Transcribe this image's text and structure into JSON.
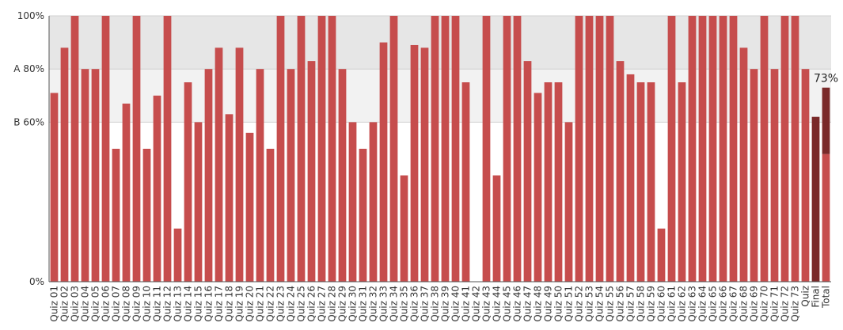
{
  "chart_data": {
    "type": "bar",
    "ylim": [
      0,
      100
    ],
    "yticks": [
      {
        "value": 0,
        "label": "0%"
      },
      {
        "value": 60,
        "label": "B 60%"
      },
      {
        "value": 80,
        "label": "A 80%"
      },
      {
        "value": 100,
        "label": "100%"
      }
    ],
    "bands": [
      {
        "from": 80,
        "to": 100,
        "color": "#e6e6e6"
      },
      {
        "from": 60,
        "to": 80,
        "color": "#f2f2f2"
      }
    ],
    "colors": {
      "bar": "#c64d4d",
      "dark": "#7a2a2a"
    },
    "categories": [
      "Quiz 01",
      "Quiz 02",
      "Quiz 03",
      "Quiz 04",
      "Quiz 05",
      "Quiz 06",
      "Quiz 07",
      "Quiz 08",
      "Quiz 09",
      "Quiz 10",
      "Quiz 11",
      "Quiz 12",
      "Quiz 13",
      "Quiz 14",
      "Quiz 15",
      "Quiz 16",
      "Quiz 17",
      "Quiz 18",
      "Quiz 19",
      "Quiz 20",
      "Quiz 21",
      "Quiz 22",
      "Quiz 23",
      "Quiz 24",
      "Quiz 25",
      "Quiz 26",
      "Quiz 27",
      "Quiz 28",
      "Quiz 29",
      "Quiz 30",
      "Quiz 31",
      "Quiz 32",
      "Quiz 33",
      "Quiz 34",
      "Quiz 35",
      "Quiz 36",
      "Quiz 37",
      "Quiz 38",
      "Quiz 39",
      "Quiz 40",
      "Quiz 41",
      "Quiz 42",
      "Quiz 43",
      "Quiz 44",
      "Quiz 45",
      "Quiz 46",
      "Quiz 47",
      "Quiz 48",
      "Quiz 49",
      "Quiz 50",
      "Quiz 51",
      "Quiz 52",
      "Quiz 53",
      "Quiz 54",
      "Quiz 55",
      "Quiz 56",
      "Quiz 57",
      "Quiz 58",
      "Quiz 59",
      "Quiz 60",
      "Quiz 61",
      "Quiz 62",
      "Quiz 63",
      "Quiz 64",
      "Quiz 65",
      "Quiz 66",
      "Quiz 67",
      "Quiz 68",
      "Quiz 69",
      "Quiz 70",
      "Quiz 71",
      "Quiz 72",
      "Quiz 73",
      "Quiz",
      "Final",
      "Total"
    ],
    "values": [
      71,
      88,
      100,
      80,
      80,
      100,
      50,
      67,
      100,
      50,
      70,
      100,
      20,
      75,
      60,
      80,
      88,
      63,
      88,
      56,
      80,
      50,
      100,
      80,
      100,
      83,
      100,
      100,
      80,
      60,
      50,
      60,
      90,
      100,
      40,
      89,
      88,
      100,
      100,
      100,
      75,
      0,
      100,
      40,
      100,
      100,
      83,
      71,
      75,
      75,
      60,
      100,
      100,
      100,
      100,
      83,
      78,
      75,
      75,
      20,
      100,
      75,
      100,
      100,
      100,
      100,
      100,
      88,
      80,
      100,
      80,
      100,
      100,
      80,
      62,
      73
    ],
    "highlight": {
      "Final": "dark"
    },
    "total_split": {
      "category": "Total",
      "lower": 48,
      "upper": 73,
      "label": "73%"
    }
  }
}
